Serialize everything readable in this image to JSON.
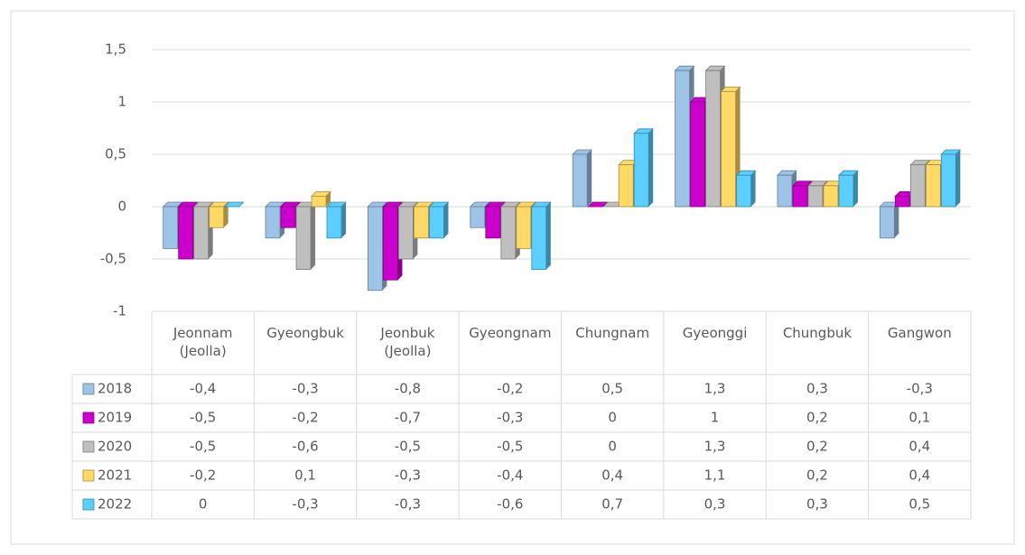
{
  "chart_data": {
    "type": "bar",
    "categories": [
      "Jeonnam (Jeolla)",
      "Gyeongbuk",
      "Jeonbuk (Jeolla)",
      "Gyeongnam",
      "Chungnam",
      "Gyeonggi",
      "Chungbuk",
      "Gangwon"
    ],
    "series": [
      {
        "name": "2018",
        "color": "#9dc3e6",
        "values": [
          -0.4,
          -0.3,
          -0.8,
          -0.2,
          0.5,
          1.3,
          0.3,
          -0.3
        ],
        "value_labels": [
          "-0,4",
          "-0,3",
          "-0,8",
          "-0,2",
          "0,5",
          "1,3",
          "0,3",
          "-0,3"
        ]
      },
      {
        "name": "2019",
        "color": "#cc00cc",
        "values": [
          -0.5,
          -0.2,
          -0.7,
          -0.3,
          0,
          1,
          0.2,
          0.1
        ],
        "value_labels": [
          "-0,5",
          "-0,2",
          "-0,7",
          "-0,3",
          "0",
          "1",
          "0,2",
          "0,1"
        ]
      },
      {
        "name": "2020",
        "color": "#bfbfbf",
        "values": [
          -0.5,
          -0.6,
          -0.5,
          -0.5,
          0,
          1.3,
          0.2,
          0.4
        ],
        "value_labels": [
          "-0,5",
          "-0,6",
          "-0,5",
          "-0,5",
          "0",
          "1,3",
          "0,2",
          "0,4"
        ]
      },
      {
        "name": "2021",
        "color": "#ffd966",
        "values": [
          -0.2,
          0.1,
          -0.3,
          -0.4,
          0.4,
          1.1,
          0.2,
          0.4
        ],
        "value_labels": [
          "-0,2",
          "0,1",
          "-0,3",
          "-0,4",
          "0,4",
          "1,1",
          "0,2",
          "0,4"
        ]
      },
      {
        "name": "2022",
        "color": "#5bcfff",
        "values": [
          0,
          -0.3,
          -0.3,
          -0.6,
          0.7,
          0.3,
          0.3,
          0.5
        ],
        "value_labels": [
          "0",
          "-0,3",
          "-0,3",
          "-0,6",
          "0,7",
          "0,3",
          "0,3",
          "0,5"
        ]
      }
    ],
    "ylim": [
      -1,
      1.5
    ],
    "yticks": [
      -1,
      {
        "value": -0.5,
        "label": "-0,5"
      },
      0,
      {
        "value": 0.5,
        "label": "0,5"
      },
      1,
      {
        "value": 1.5,
        "label": "1,5"
      }
    ],
    "grid": true
  }
}
